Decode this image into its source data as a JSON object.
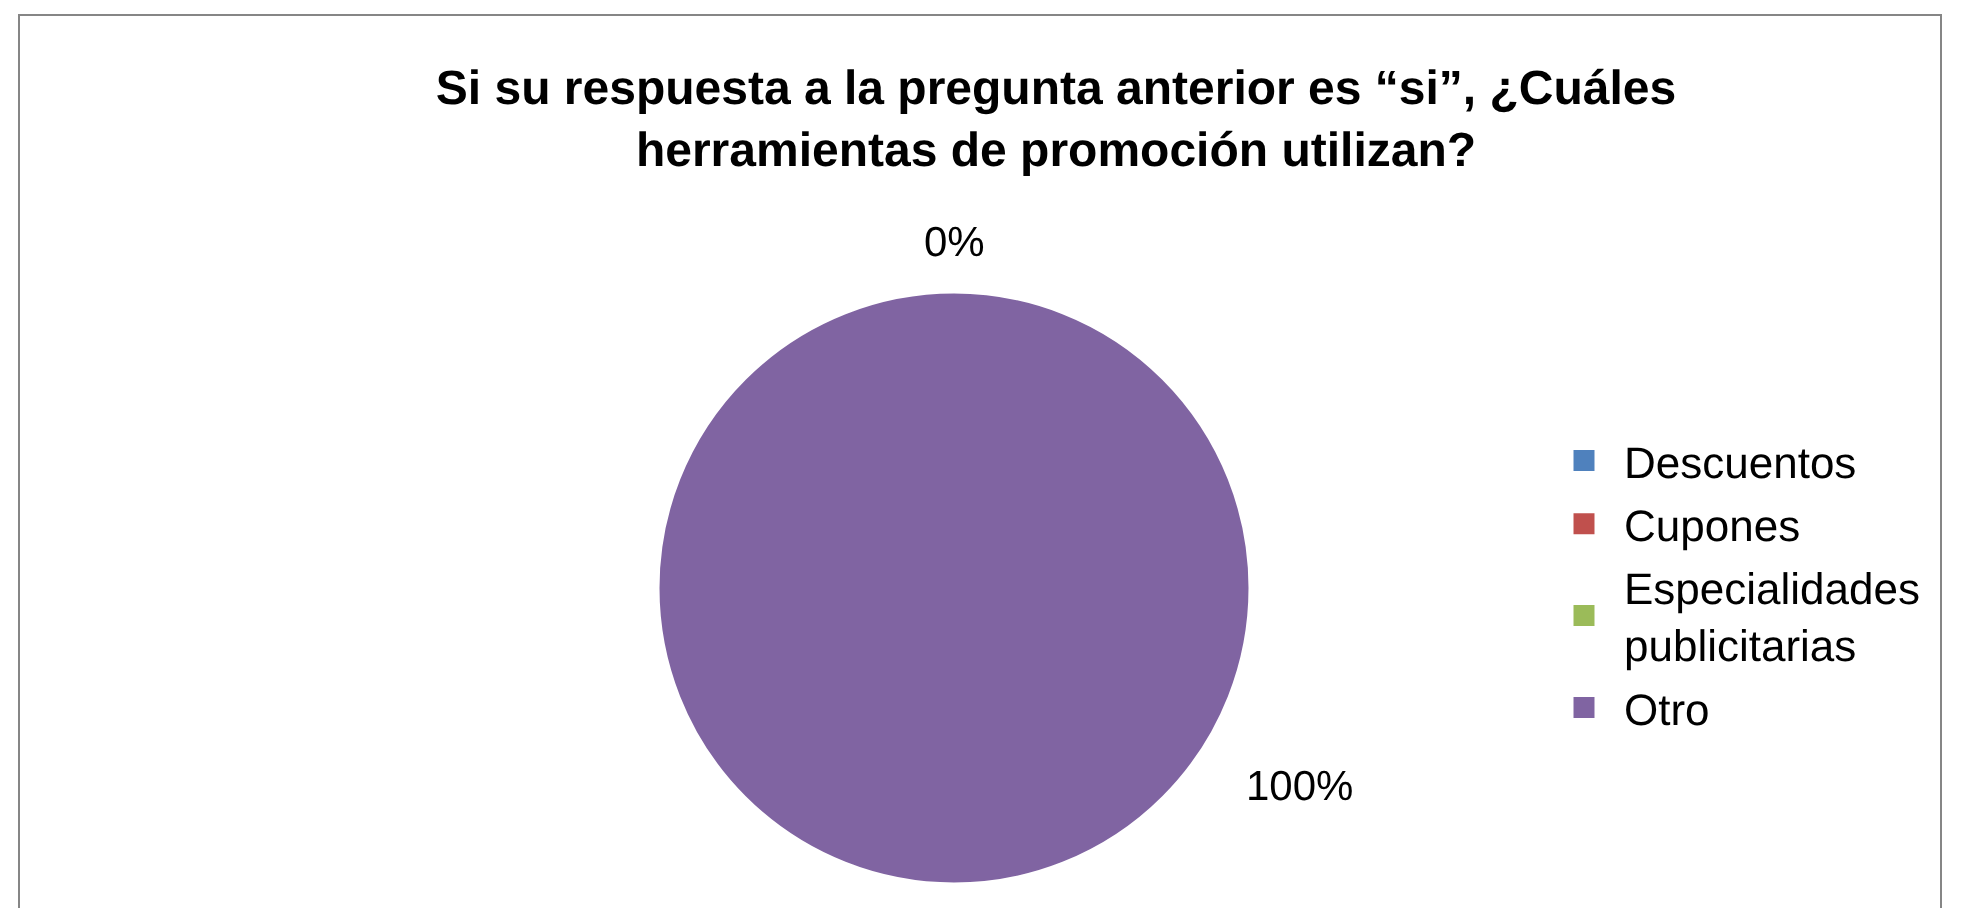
{
  "chart_data": {
    "type": "pie",
    "title": "Si su respuesta a la pregunta anterior es “si”, ¿Cuáles herramientas de promoción utilizan?",
    "categories": [
      "Descuentos",
      "Cupones",
      "Especialidades publicitarias",
      "Otro"
    ],
    "values": [
      0,
      0,
      0,
      100
    ],
    "colors": [
      "#4f81bd",
      "#c0504d",
      "#9bbb59",
      "#8064a2"
    ],
    "value_labels": [
      "0%",
      null,
      null,
      "100%"
    ],
    "legend": "right"
  }
}
